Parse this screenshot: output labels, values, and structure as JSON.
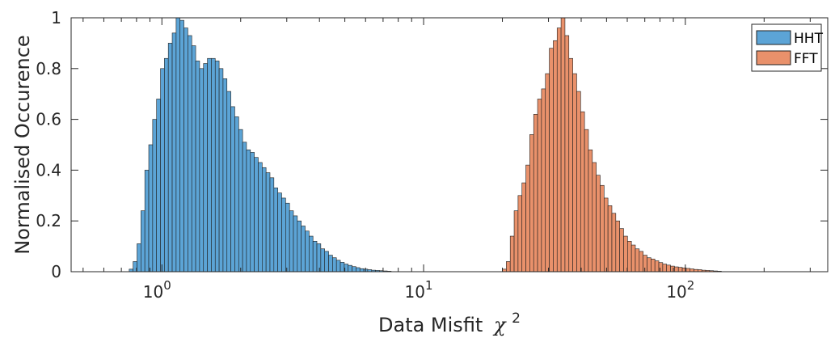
{
  "chart_data": {
    "type": "bar",
    "xlabel": "Data Misfit",
    "xlabel_symbol": "χ",
    "xlabel_exp": "2",
    "ylabel": "Normalised Occurence",
    "x_scale": "log",
    "xlim": [
      0.45,
      350
    ],
    "ylim": [
      0,
      1
    ],
    "y_ticks": [
      0,
      0.2,
      0.4,
      0.6,
      0.8,
      1
    ],
    "y_tick_labels": [
      "0",
      "0.2",
      "0.4",
      "0.6",
      "0.8",
      "1"
    ],
    "x_ticks": [
      {
        "base": "10",
        "exp": "0",
        "value": 1
      },
      {
        "base": "10",
        "exp": "1",
        "value": 10
      },
      {
        "base": "10",
        "exp": "2",
        "value": 100
      }
    ],
    "grid": false,
    "legend_position": "top-right",
    "series": [
      {
        "name": "HHT",
        "color": "#5ca4d6",
        "bin_start": 0.75,
        "bin_ratio": 1.035,
        "values": [
          0.01,
          0.04,
          0.11,
          0.24,
          0.4,
          0.5,
          0.6,
          0.68,
          0.8,
          0.84,
          0.9,
          0.94,
          1.0,
          0.99,
          0.96,
          0.93,
          0.89,
          0.83,
          0.8,
          0.82,
          0.84,
          0.84,
          0.83,
          0.8,
          0.76,
          0.71,
          0.65,
          0.61,
          0.56,
          0.51,
          0.48,
          0.47,
          0.45,
          0.43,
          0.41,
          0.39,
          0.37,
          0.33,
          0.31,
          0.29,
          0.27,
          0.24,
          0.22,
          0.2,
          0.18,
          0.16,
          0.14,
          0.12,
          0.11,
          0.09,
          0.08,
          0.065,
          0.055,
          0.045,
          0.037,
          0.03,
          0.025,
          0.02,
          0.016,
          0.012,
          0.01,
          0.008,
          0.006,
          0.005,
          0.004,
          0.003,
          0.002
        ]
      },
      {
        "name": "FFT",
        "color": "#e9916b",
        "bin_start": 20.0,
        "bin_ratio": 1.035,
        "values": [
          0.01,
          0.04,
          0.14,
          0.24,
          0.3,
          0.35,
          0.42,
          0.54,
          0.62,
          0.68,
          0.72,
          0.78,
          0.88,
          0.91,
          0.96,
          1.0,
          0.93,
          0.84,
          0.78,
          0.71,
          0.63,
          0.56,
          0.48,
          0.43,
          0.38,
          0.34,
          0.29,
          0.26,
          0.23,
          0.2,
          0.17,
          0.14,
          0.12,
          0.105,
          0.09,
          0.08,
          0.065,
          0.055,
          0.05,
          0.043,
          0.036,
          0.03,
          0.026,
          0.022,
          0.019,
          0.017,
          0.015,
          0.013,
          0.011,
          0.009,
          0.008,
          0.006,
          0.005,
          0.004,
          0.003,
          0.002
        ]
      }
    ]
  }
}
